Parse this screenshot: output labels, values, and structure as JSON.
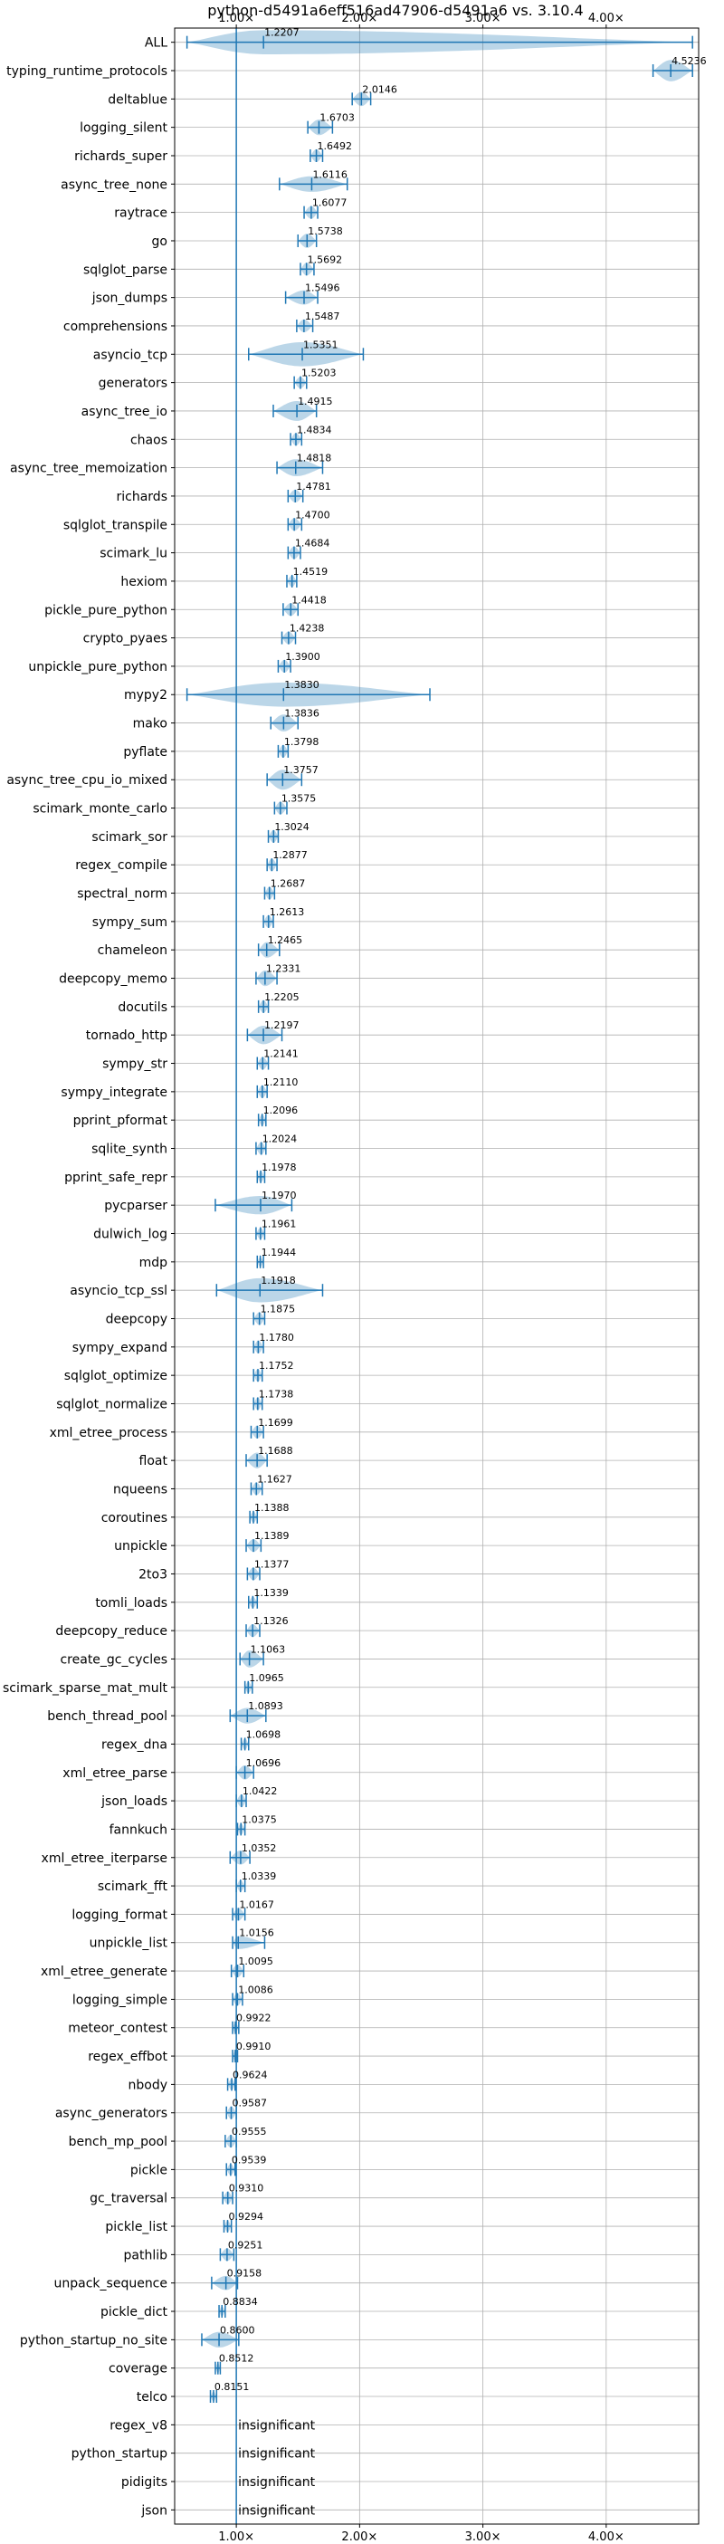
{
  "chart_data": {
    "type": "violin",
    "title": "python-d5491a6eff516ad47906-d5491a6 vs. 3.10.4",
    "xlim": [
      0.5,
      4.75
    ],
    "x_ticks": [
      {
        "value": 1,
        "label": "1.00×"
      },
      {
        "value": 2,
        "label": "2.00×"
      },
      {
        "value": 3,
        "label": "3.00×"
      },
      {
        "value": 4,
        "label": "4.00×"
      }
    ],
    "reference_line": 1.0,
    "grid": true,
    "insignificant_text": "insignificant",
    "benchmarks": [
      {
        "name": "ALL",
        "median": 1.2207,
        "min": 0.6,
        "max": 4.7,
        "width": 0.85,
        "label": "1.2207"
      },
      {
        "name": "typing_runtime_protocols",
        "median": 4.5236,
        "min": 4.38,
        "max": 4.7,
        "width": 0.75,
        "label": "4.5236"
      },
      {
        "name": "deltablue",
        "median": 2.0146,
        "min": 1.94,
        "max": 2.09,
        "width": 0.5,
        "label": "2.0146"
      },
      {
        "name": "logging_silent",
        "median": 1.6703,
        "min": 1.58,
        "max": 1.78,
        "width": 0.55,
        "label": "1.6703"
      },
      {
        "name": "richards_super",
        "median": 1.6492,
        "min": 1.6,
        "max": 1.7,
        "width": 0.45,
        "label": "1.6492"
      },
      {
        "name": "async_tree_none",
        "median": 1.6116,
        "min": 1.35,
        "max": 1.9,
        "width": 0.55,
        "label": "1.6116"
      },
      {
        "name": "raytrace",
        "median": 1.6077,
        "min": 1.55,
        "max": 1.66,
        "width": 0.45,
        "label": "1.6077"
      },
      {
        "name": "go",
        "median": 1.5738,
        "min": 1.5,
        "max": 1.65,
        "width": 0.5,
        "label": "1.5738"
      },
      {
        "name": "sqlglot_parse",
        "median": 1.5692,
        "min": 1.52,
        "max": 1.63,
        "width": 0.45,
        "label": "1.5692"
      },
      {
        "name": "json_dumps",
        "median": 1.5496,
        "min": 1.4,
        "max": 1.66,
        "width": 0.5,
        "label": "1.5496"
      },
      {
        "name": "comprehensions",
        "median": 1.5487,
        "min": 1.49,
        "max": 1.62,
        "width": 0.45,
        "label": "1.5487"
      },
      {
        "name": "asyncio_tcp",
        "median": 1.5351,
        "min": 1.1,
        "max": 2.03,
        "width": 0.85,
        "label": "1.5351"
      },
      {
        "name": "generators",
        "median": 1.5203,
        "min": 1.47,
        "max": 1.57,
        "width": 0.4,
        "label": "1.5203"
      },
      {
        "name": "async_tree_io",
        "median": 1.4915,
        "min": 1.3,
        "max": 1.65,
        "width": 0.7,
        "label": "1.4915"
      },
      {
        "name": "chaos",
        "median": 1.4834,
        "min": 1.44,
        "max": 1.53,
        "width": 0.45,
        "label": "1.4834"
      },
      {
        "name": "async_tree_memoization",
        "median": 1.4818,
        "min": 1.33,
        "max": 1.7,
        "width": 0.6,
        "label": "1.4818"
      },
      {
        "name": "richards",
        "median": 1.4781,
        "min": 1.42,
        "max": 1.54,
        "width": 0.45,
        "label": "1.4781"
      },
      {
        "name": "sqlglot_transpile",
        "median": 1.47,
        "min": 1.42,
        "max": 1.53,
        "width": 0.45,
        "label": "1.4700"
      },
      {
        "name": "scimark_lu",
        "median": 1.4684,
        "min": 1.42,
        "max": 1.52,
        "width": 0.45,
        "label": "1.4684"
      },
      {
        "name": "hexiom",
        "median": 1.4519,
        "min": 1.41,
        "max": 1.49,
        "width": 0.4,
        "label": "1.4519"
      },
      {
        "name": "pickle_pure_python",
        "median": 1.4418,
        "min": 1.38,
        "max": 1.5,
        "width": 0.45,
        "label": "1.4418"
      },
      {
        "name": "crypto_pyaes",
        "median": 1.4238,
        "min": 1.37,
        "max": 1.48,
        "width": 0.45,
        "label": "1.4238"
      },
      {
        "name": "unpickle_pure_python",
        "median": 1.39,
        "min": 1.34,
        "max": 1.44,
        "width": 0.45,
        "label": "1.3900"
      },
      {
        "name": "mypy2",
        "median": 1.383,
        "min": 0.6,
        "max": 2.57,
        "width": 0.85,
        "label": "1.3830"
      },
      {
        "name": "mako",
        "median": 1.3836,
        "min": 1.28,
        "max": 1.5,
        "width": 0.6,
        "label": "1.3836"
      },
      {
        "name": "pyflate",
        "median": 1.3798,
        "min": 1.34,
        "max": 1.42,
        "width": 0.45,
        "label": "1.3798"
      },
      {
        "name": "async_tree_cpu_io_mixed",
        "median": 1.3757,
        "min": 1.25,
        "max": 1.53,
        "width": 0.7,
        "label": "1.3757"
      },
      {
        "name": "scimark_monte_carlo",
        "median": 1.3575,
        "min": 1.31,
        "max": 1.41,
        "width": 0.45,
        "label": "1.3575"
      },
      {
        "name": "scimark_sor",
        "median": 1.3024,
        "min": 1.26,
        "max": 1.34,
        "width": 0.45,
        "label": "1.3024"
      },
      {
        "name": "regex_compile",
        "median": 1.2877,
        "min": 1.25,
        "max": 1.33,
        "width": 0.45,
        "label": "1.2877"
      },
      {
        "name": "spectral_norm",
        "median": 1.2687,
        "min": 1.23,
        "max": 1.31,
        "width": 0.45,
        "label": "1.2687"
      },
      {
        "name": "sympy_sum",
        "median": 1.2613,
        "min": 1.22,
        "max": 1.3,
        "width": 0.45,
        "label": "1.2613"
      },
      {
        "name": "chameleon",
        "median": 1.2465,
        "min": 1.18,
        "max": 1.35,
        "width": 0.55,
        "label": "1.2465"
      },
      {
        "name": "deepcopy_memo",
        "median": 1.2331,
        "min": 1.16,
        "max": 1.33,
        "width": 0.55,
        "label": "1.2331"
      },
      {
        "name": "docutils",
        "median": 1.2205,
        "min": 1.18,
        "max": 1.26,
        "width": 0.45,
        "label": "1.2205"
      },
      {
        "name": "tornado_http",
        "median": 1.2197,
        "min": 1.09,
        "max": 1.37,
        "width": 0.65,
        "label": "1.2197"
      },
      {
        "name": "sympy_str",
        "median": 1.2141,
        "min": 1.17,
        "max": 1.26,
        "width": 0.45,
        "label": "1.2141"
      },
      {
        "name": "sympy_integrate",
        "median": 1.211,
        "min": 1.17,
        "max": 1.25,
        "width": 0.45,
        "label": "1.2110"
      },
      {
        "name": "pprint_pformat",
        "median": 1.2096,
        "min": 1.18,
        "max": 1.24,
        "width": 0.4,
        "label": "1.2096"
      },
      {
        "name": "sqlite_synth",
        "median": 1.2024,
        "min": 1.16,
        "max": 1.24,
        "width": 0.45,
        "label": "1.2024"
      },
      {
        "name": "pprint_safe_repr",
        "median": 1.1978,
        "min": 1.17,
        "max": 1.23,
        "width": 0.4,
        "label": "1.1978"
      },
      {
        "name": "pycparser",
        "median": 1.197,
        "min": 0.83,
        "max": 1.45,
        "width": 0.65,
        "label": "1.1970"
      },
      {
        "name": "dulwich_log",
        "median": 1.1961,
        "min": 1.16,
        "max": 1.23,
        "width": 0.4,
        "label": "1.1961"
      },
      {
        "name": "mdp",
        "median": 1.1944,
        "min": 1.17,
        "max": 1.22,
        "width": 0.35,
        "label": "1.1944"
      },
      {
        "name": "asyncio_tcp_ssl",
        "median": 1.1918,
        "min": 0.84,
        "max": 1.7,
        "width": 0.85,
        "label": "1.1918"
      },
      {
        "name": "deepcopy",
        "median": 1.1875,
        "min": 1.14,
        "max": 1.23,
        "width": 0.45,
        "label": "1.1875"
      },
      {
        "name": "sympy_expand",
        "median": 1.178,
        "min": 1.14,
        "max": 1.22,
        "width": 0.45,
        "label": "1.1780"
      },
      {
        "name": "sqlglot_optimize",
        "median": 1.1752,
        "min": 1.14,
        "max": 1.21,
        "width": 0.45,
        "label": "1.1752"
      },
      {
        "name": "sqlglot_normalize",
        "median": 1.1738,
        "min": 1.14,
        "max": 1.21,
        "width": 0.45,
        "label": "1.1738"
      },
      {
        "name": "xml_etree_process",
        "median": 1.1699,
        "min": 1.12,
        "max": 1.22,
        "width": 0.45,
        "label": "1.1699"
      },
      {
        "name": "float",
        "median": 1.1688,
        "min": 1.08,
        "max": 1.25,
        "width": 0.55,
        "label": "1.1688"
      },
      {
        "name": "nqueens",
        "median": 1.1627,
        "min": 1.12,
        "max": 1.21,
        "width": 0.45,
        "label": "1.1627"
      },
      {
        "name": "coroutines",
        "median": 1.1388,
        "min": 1.11,
        "max": 1.17,
        "width": 0.4,
        "label": "1.1388"
      },
      {
        "name": "unpickle",
        "median": 1.1389,
        "min": 1.08,
        "max": 1.2,
        "width": 0.45,
        "label": "1.1389"
      },
      {
        "name": "2to3",
        "median": 1.1377,
        "min": 1.09,
        "max": 1.19,
        "width": 0.45,
        "label": "1.1377"
      },
      {
        "name": "tomli_loads",
        "median": 1.1339,
        "min": 1.1,
        "max": 1.17,
        "width": 0.4,
        "label": "1.1339"
      },
      {
        "name": "deepcopy_reduce",
        "median": 1.1326,
        "min": 1.08,
        "max": 1.19,
        "width": 0.45,
        "label": "1.1326"
      },
      {
        "name": "create_gc_cycles",
        "median": 1.1063,
        "min": 1.03,
        "max": 1.22,
        "width": 0.6,
        "label": "1.1063"
      },
      {
        "name": "scimark_sparse_mat_mult",
        "median": 1.0965,
        "min": 1.07,
        "max": 1.13,
        "width": 0.4,
        "label": "1.0965"
      },
      {
        "name": "bench_thread_pool",
        "median": 1.0893,
        "min": 0.95,
        "max": 1.24,
        "width": 0.55,
        "label": "1.0893"
      },
      {
        "name": "regex_dna",
        "median": 1.0698,
        "min": 1.04,
        "max": 1.1,
        "width": 0.4,
        "label": "1.0698"
      },
      {
        "name": "xml_etree_parse",
        "median": 1.0696,
        "min": 1.0,
        "max": 1.14,
        "width": 0.5,
        "label": "1.0696"
      },
      {
        "name": "json_loads",
        "median": 1.0422,
        "min": 1.0,
        "max": 1.08,
        "width": 0.45,
        "label": "1.0422"
      },
      {
        "name": "fannkuch",
        "median": 1.0375,
        "min": 1.01,
        "max": 1.07,
        "width": 0.4,
        "label": "1.0375"
      },
      {
        "name": "xml_etree_iterparse",
        "median": 1.0352,
        "min": 0.95,
        "max": 1.11,
        "width": 0.5,
        "label": "1.0352"
      },
      {
        "name": "scimark_fft",
        "median": 1.0339,
        "min": 1.0,
        "max": 1.07,
        "width": 0.4,
        "label": "1.0339"
      },
      {
        "name": "logging_format",
        "median": 1.0167,
        "min": 0.97,
        "max": 1.07,
        "width": 0.45,
        "label": "1.0167"
      },
      {
        "name": "unpickle_list",
        "median": 1.0156,
        "min": 0.97,
        "max": 1.23,
        "width": 0.45,
        "label": "1.0156"
      },
      {
        "name": "xml_etree_generate",
        "median": 1.0095,
        "min": 0.96,
        "max": 1.06,
        "width": 0.45,
        "label": "1.0095"
      },
      {
        "name": "logging_simple",
        "median": 1.0086,
        "min": 0.97,
        "max": 1.05,
        "width": 0.45,
        "label": "1.0086"
      },
      {
        "name": "meteor_contest",
        "median": 0.9922,
        "min": 0.97,
        "max": 1.02,
        "width": 0.35,
        "label": "0.9922"
      },
      {
        "name": "regex_effbot",
        "median": 0.991,
        "min": 0.97,
        "max": 1.01,
        "width": 0.35,
        "label": "0.9910"
      },
      {
        "name": "nbody",
        "median": 0.9624,
        "min": 0.93,
        "max": 0.99,
        "width": 0.4,
        "label": "0.9624"
      },
      {
        "name": "async_generators",
        "median": 0.9587,
        "min": 0.92,
        "max": 1.0,
        "width": 0.45,
        "label": "0.9587"
      },
      {
        "name": "bench_mp_pool",
        "median": 0.9555,
        "min": 0.91,
        "max": 1.0,
        "width": 0.45,
        "label": "0.9555"
      },
      {
        "name": "pickle",
        "median": 0.9539,
        "min": 0.92,
        "max": 0.99,
        "width": 0.4,
        "label": "0.9539"
      },
      {
        "name": "gc_traversal",
        "median": 0.931,
        "min": 0.89,
        "max": 0.97,
        "width": 0.45,
        "label": "0.9310"
      },
      {
        "name": "pickle_list",
        "median": 0.9294,
        "min": 0.9,
        "max": 0.96,
        "width": 0.4,
        "label": "0.9294"
      },
      {
        "name": "pathlib",
        "median": 0.9251,
        "min": 0.87,
        "max": 0.98,
        "width": 0.45,
        "label": "0.9251"
      },
      {
        "name": "unpack_sequence",
        "median": 0.9158,
        "min": 0.8,
        "max": 1.01,
        "width": 0.5,
        "label": "0.9158"
      },
      {
        "name": "pickle_dict",
        "median": 0.8834,
        "min": 0.86,
        "max": 0.91,
        "width": 0.35,
        "label": "0.8834"
      },
      {
        "name": "python_startup_no_site",
        "median": 0.86,
        "min": 0.72,
        "max": 1.02,
        "width": 0.55,
        "label": "0.8600"
      },
      {
        "name": "coverage",
        "median": 0.8512,
        "min": 0.83,
        "max": 0.87,
        "width": 0.35,
        "label": "0.8512"
      },
      {
        "name": "telco",
        "median": 0.8151,
        "min": 0.79,
        "max": 0.84,
        "width": 0.35,
        "label": "0.8151"
      },
      {
        "name": "regex_v8",
        "insignificant": true
      },
      {
        "name": "python_startup",
        "insignificant": true
      },
      {
        "name": "pidigits",
        "insignificant": true
      },
      {
        "name": "json",
        "insignificant": true
      }
    ]
  }
}
